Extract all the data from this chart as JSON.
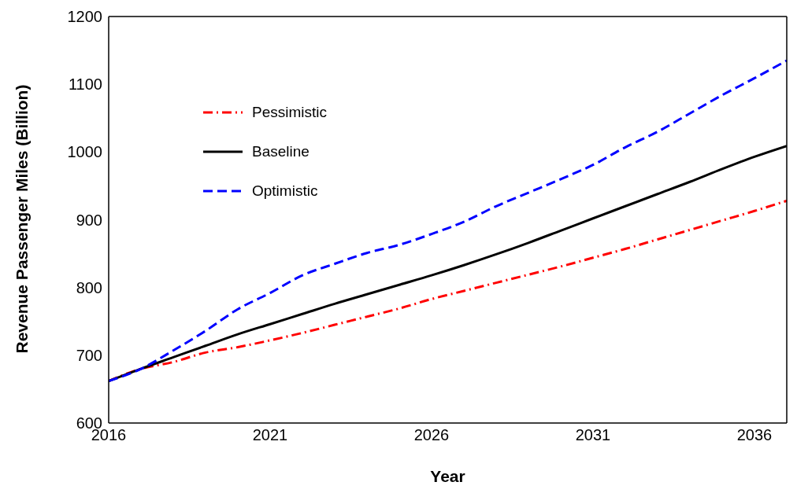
{
  "chart_data": {
    "type": "line",
    "xlabel": "Year",
    "ylabel": "Revenue Passenger Miles (Billion)",
    "x": [
      2016,
      2017,
      2018,
      2019,
      2020,
      2021,
      2022,
      2023,
      2024,
      2025,
      2026,
      2027,
      2028,
      2029,
      2030,
      2031,
      2032,
      2033,
      2034,
      2035,
      2036,
      2037
    ],
    "series": [
      {
        "name": "Pessimistic",
        "color": "#ff0000",
        "line_style": "dashdot",
        "values": [
          662,
          680,
          690,
          704,
          712,
          722,
          733,
          745,
          757,
          769,
          783,
          795,
          807,
          819,
          831,
          844,
          857,
          871,
          885,
          899,
          913,
          928
        ]
      },
      {
        "name": "Baseline",
        "color": "#000000",
        "line_style": "solid",
        "values": [
          662,
          680,
          697,
          714,
          731,
          746,
          761,
          776,
          790,
          804,
          818,
          833,
          849,
          866,
          884,
          902,
          920,
          938,
          956,
          975,
          993,
          1009
        ]
      },
      {
        "name": "Optimistic",
        "color": "#0000ff",
        "line_style": "dashed",
        "values": [
          662,
          680,
          707,
          736,
          768,
          792,
          818,
          835,
          851,
          863,
          879,
          897,
          920,
          940,
          960,
          981,
          1007,
          1030,
          1057,
          1084,
          1109,
          1135
        ]
      }
    ],
    "xlim": [
      2016,
      2037
    ],
    "xticks": [
      2016,
      2021,
      2026,
      2031,
      2036
    ],
    "ylim": [
      600,
      1200
    ],
    "yticks": [
      600,
      700,
      800,
      900,
      1000,
      1100,
      1200
    ],
    "grid": false,
    "legend": "top left",
    "marker": "none"
  }
}
